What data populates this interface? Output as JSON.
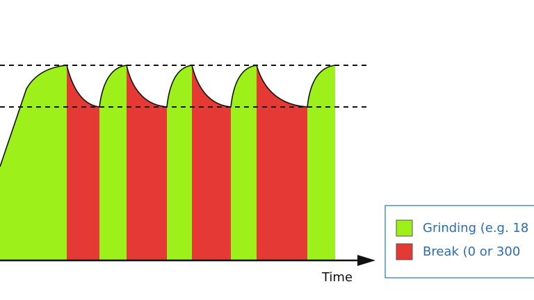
{
  "axis": {
    "label": "Time"
  },
  "legend": [
    {
      "label": "Grinding (e.g. 18"
    },
    {
      "label": "Break (0 or 300"
    }
  ]
}
